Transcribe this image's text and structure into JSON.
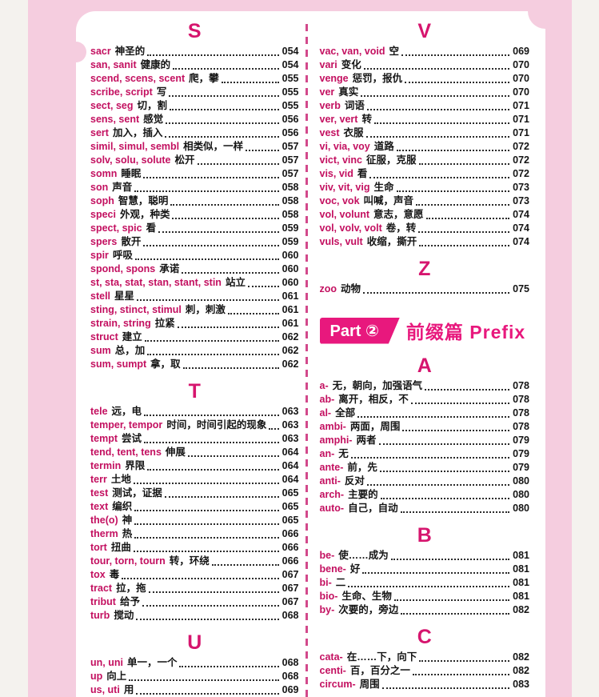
{
  "colors": {
    "outer_background": "#f4f2ee",
    "frame_pink": "#f5cddf",
    "sheet_white": "#ffffff",
    "accent_magenta": "#d6156e",
    "banner_magenta": "#e8187d",
    "root_crimson": "#c31060",
    "text_black": "#141414",
    "divider_pink": "#d2498b"
  },
  "columns": [
    {
      "name": "left",
      "blocks": [
        {
          "type": "section",
          "letter": "S",
          "entries": [
            {
              "root": "sacr",
              "meaning": "神圣的",
              "page": "054"
            },
            {
              "root": "san, sanit",
              "meaning": "健康的",
              "page": "054"
            },
            {
              "root": "scend, scens, scent",
              "meaning": "爬，攀",
              "page": "055"
            },
            {
              "root": "scribe, script",
              "meaning": "写",
              "page": "055"
            },
            {
              "root": "sect, seg",
              "meaning": "切，割",
              "page": "055"
            },
            {
              "root": "sens, sent",
              "meaning": "感觉",
              "page": "056"
            },
            {
              "root": "sert",
              "meaning": "加入，插入",
              "page": "056"
            },
            {
              "root": "simil, simul, sembl",
              "meaning": "相类似，一样",
              "page": "057"
            },
            {
              "root": "solv, solu, solute",
              "meaning": "松开",
              "page": "057"
            },
            {
              "root": "somn",
              "meaning": "睡眠",
              "page": "057"
            },
            {
              "root": "son",
              "meaning": "声音",
              "page": "058"
            },
            {
              "root": "soph",
              "meaning": "智慧，聪明",
              "page": "058"
            },
            {
              "root": "speci",
              "meaning": "外观，种类",
              "page": "058"
            },
            {
              "root": "spect, spic",
              "meaning": "看",
              "page": "059"
            },
            {
              "root": "spers",
              "meaning": "散开",
              "page": "059"
            },
            {
              "root": "spir",
              "meaning": "呼吸",
              "page": "060"
            },
            {
              "root": "spond, spons",
              "meaning": "承诺",
              "page": "060"
            },
            {
              "root": "st, sta, stat, stan, stant, stin",
              "meaning": "站立",
              "page": "060"
            },
            {
              "root": "stell",
              "meaning": "星星",
              "page": "061"
            },
            {
              "root": "sting, stinct, stimul",
              "meaning": "刺，刺激",
              "page": "061"
            },
            {
              "root": "strain, string",
              "meaning": "拉紧",
              "page": "061"
            },
            {
              "root": "struct",
              "meaning": "建立",
              "page": "062"
            },
            {
              "root": "sum",
              "meaning": "总，加",
              "page": "062"
            },
            {
              "root": "sum, sumpt",
              "meaning": "拿，取",
              "page": "062"
            }
          ]
        },
        {
          "type": "section",
          "letter": "T",
          "entries": [
            {
              "root": "tele",
              "meaning": "远，电",
              "page": "063"
            },
            {
              "root": "temper, tempor",
              "meaning": "时间，时间引起的现象",
              "page": "063"
            },
            {
              "root": "tempt",
              "meaning": "尝试",
              "page": "063"
            },
            {
              "root": "tend, tent, tens",
              "meaning": "伸展",
              "page": "064"
            },
            {
              "root": "termin",
              "meaning": "界限",
              "page": "064"
            },
            {
              "root": "terr",
              "meaning": "土地",
              "page": "064"
            },
            {
              "root": "test",
              "meaning": "测试，证据",
              "page": "065"
            },
            {
              "root": "text",
              "meaning": "编织",
              "page": "065"
            },
            {
              "root": "the(o)",
              "meaning": "神",
              "page": "065"
            },
            {
              "root": "therm",
              "meaning": "热",
              "page": "066"
            },
            {
              "root": "tort",
              "meaning": "扭曲",
              "page": "066"
            },
            {
              "root": "tour, torn, tourn",
              "meaning": "转，环绕",
              "page": "066"
            },
            {
              "root": "tox",
              "meaning": "毒",
              "page": "067"
            },
            {
              "root": "tract",
              "meaning": "拉，拖",
              "page": "067"
            },
            {
              "root": "tribut",
              "meaning": "给予",
              "page": "067"
            },
            {
              "root": "turb",
              "meaning": "搅动",
              "page": "068"
            }
          ]
        },
        {
          "type": "section",
          "letter": "U",
          "entries": [
            {
              "root": "un, uni",
              "meaning": "单一，一个",
              "page": "068"
            },
            {
              "root": "up",
              "meaning": "向上",
              "page": "068"
            },
            {
              "root": "us, uti",
              "meaning": "用",
              "page": "069"
            }
          ]
        }
      ]
    },
    {
      "name": "right",
      "blocks": [
        {
          "type": "section",
          "letter": "V",
          "entries": [
            {
              "root": "vac, van, void",
              "meaning": "空",
              "page": "069"
            },
            {
              "root": "vari",
              "meaning": "变化",
              "page": "070"
            },
            {
              "root": "venge",
              "meaning": "惩罚，报仇",
              "page": "070"
            },
            {
              "root": "ver",
              "meaning": "真实",
              "page": "070"
            },
            {
              "root": "verb",
              "meaning": "词语",
              "page": "071"
            },
            {
              "root": "ver, vert",
              "meaning": "转",
              "page": "071"
            },
            {
              "root": "vest",
              "meaning": "衣服",
              "page": "071"
            },
            {
              "root": "vi, via, voy",
              "meaning": "道路",
              "page": "072"
            },
            {
              "root": "vict, vinc",
              "meaning": "征服，克服",
              "page": "072"
            },
            {
              "root": "vis, vid",
              "meaning": "看",
              "page": "072"
            },
            {
              "root": "viv, vit, vig",
              "meaning": "生命",
              "page": "073"
            },
            {
              "root": "voc, vok",
              "meaning": "叫喊，声音",
              "page": "073"
            },
            {
              "root": "vol, volunt",
              "meaning": "意志，意愿",
              "page": "074"
            },
            {
              "root": "vol, volv, volt",
              "meaning": "卷，转",
              "page": "074"
            },
            {
              "root": "vuls, vult",
              "meaning": "收缩，撕开",
              "page": "074"
            }
          ]
        },
        {
          "type": "section",
          "letter": "Z",
          "entries": [
            {
              "root": "zoo",
              "meaning": "动物",
              "page": "075"
            }
          ]
        },
        {
          "type": "part",
          "label": "Part ②",
          "title": "前缀篇 Prefix"
        },
        {
          "type": "section",
          "letter": "A",
          "entries": [
            {
              "root": "a-",
              "meaning": "无，朝向，加强语气",
              "page": "078"
            },
            {
              "root": "ab-",
              "meaning": "离开，相反，不",
              "page": "078"
            },
            {
              "root": "al-",
              "meaning": "全部",
              "page": "078"
            },
            {
              "root": "ambi-",
              "meaning": "两面，周围",
              "page": "078"
            },
            {
              "root": "amphi-",
              "meaning": "两者",
              "page": "079"
            },
            {
              "root": "an-",
              "meaning": "无",
              "page": "079"
            },
            {
              "root": "ante-",
              "meaning": "前，先",
              "page": "079"
            },
            {
              "root": "anti-",
              "meaning": "反对",
              "page": "080"
            },
            {
              "root": "arch-",
              "meaning": "主要的",
              "page": "080"
            },
            {
              "root": "auto-",
              "meaning": "自己，自动",
              "page": "080"
            }
          ]
        },
        {
          "type": "section",
          "letter": "B",
          "entries": [
            {
              "root": "be-",
              "meaning": "使……成为",
              "page": "081"
            },
            {
              "root": "bene-",
              "meaning": "好",
              "page": "081"
            },
            {
              "root": "bi-",
              "meaning": "二",
              "page": "081"
            },
            {
              "root": "bio-",
              "meaning": "生命、生物",
              "page": "081"
            },
            {
              "root": "by-",
              "meaning": "次要的，旁边",
              "page": "082"
            }
          ]
        },
        {
          "type": "section",
          "letter": "C",
          "entries": [
            {
              "root": "cata-",
              "meaning": "在……下，向下",
              "page": "082"
            },
            {
              "root": "centi-",
              "meaning": "百，百分之一",
              "page": "082"
            },
            {
              "root": "circum-",
              "meaning": "周围",
              "page": "083"
            }
          ]
        }
      ]
    }
  ]
}
